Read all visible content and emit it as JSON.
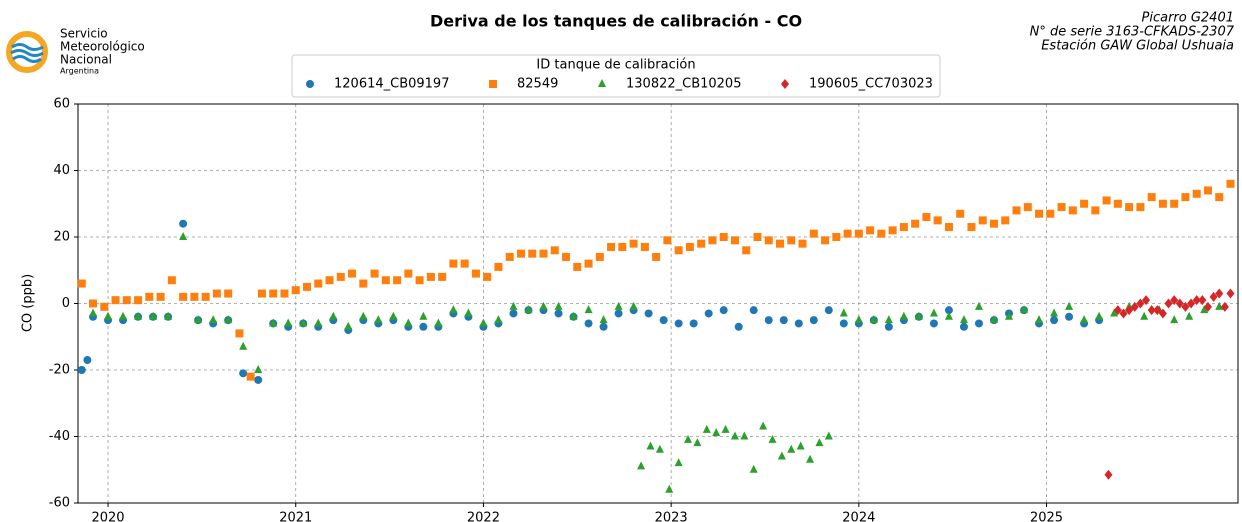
{
  "logo": {
    "lines": [
      "Servicio",
      "Meteorológico",
      "Nacional",
      "Argentina"
    ]
  },
  "chart_data": {
    "type": "scatter",
    "title": "Deriva de los tanques de calibración - CO",
    "annotations": [
      "Picarro G2401",
      "N° de serie 3163-CFKADS-2307",
      "Estación GAW Global Ushuaia"
    ],
    "legend_title": "ID tanque de calibración",
    "ylabel": "CO (ppb)",
    "xlim": [
      2019.84,
      2026.02
    ],
    "ylim": [
      -60,
      60
    ],
    "xticks": [
      2020,
      2021,
      2022,
      2023,
      2024,
      2025
    ],
    "yticks": [
      -60,
      -40,
      -20,
      0,
      20,
      40,
      60
    ],
    "grid": true,
    "series": [
      {
        "name": "120614_CB09197",
        "color": "#1f77b4",
        "marker": "circle",
        "x": [
          2019.86,
          2019.89,
          2019.92,
          2020.0,
          2020.08,
          2020.16,
          2020.24,
          2020.32,
          2020.4,
          2020.48,
          2020.56,
          2020.64,
          2020.72,
          2020.8,
          2020.88,
          2020.96,
          2021.04,
          2021.12,
          2021.2,
          2021.28,
          2021.36,
          2021.44,
          2021.52,
          2021.6,
          2021.68,
          2021.76,
          2021.84,
          2021.92,
          2022.0,
          2022.08,
          2022.16,
          2022.24,
          2022.32,
          2022.4,
          2022.48,
          2022.56,
          2022.64,
          2022.72,
          2022.8,
          2022.88,
          2022.96,
          2023.04,
          2023.12,
          2023.2,
          2023.28,
          2023.36,
          2023.44,
          2023.52,
          2023.6,
          2023.68,
          2023.76,
          2023.84,
          2023.92,
          2024.0,
          2024.08,
          2024.16,
          2024.24,
          2024.32,
          2024.4,
          2024.48,
          2024.56,
          2024.64,
          2024.72,
          2024.8,
          2024.88,
          2024.96,
          2025.04,
          2025.12,
          2025.2,
          2025.28
        ],
        "values": [
          -20,
          -17,
          -4,
          -5,
          -5,
          -4,
          -4,
          -4,
          24,
          -5,
          -6,
          -5,
          -21,
          -23,
          -6,
          -7,
          -6,
          -7,
          -5,
          -8,
          -5,
          -6,
          -5,
          -7,
          -7,
          -7,
          -3,
          -4,
          -7,
          -6,
          -3,
          -2,
          -2,
          -3,
          -4,
          -6,
          -7,
          -3,
          -2,
          -3,
          -5,
          -6,
          -6,
          -3,
          -2,
          -7,
          -2,
          -5,
          -5,
          -6,
          -5,
          -2,
          -6,
          -6,
          -5,
          -7,
          -5,
          -4,
          -6,
          -2,
          -7,
          -6,
          -5,
          -3,
          -2,
          -6,
          -5,
          -4,
          -6,
          -5
        ]
      },
      {
        "name": "82549",
        "color": "#ff7f0e",
        "marker": "square",
        "x": [
          2019.86,
          2019.92,
          2019.98,
          2020.04,
          2020.1,
          2020.16,
          2020.22,
          2020.28,
          2020.34,
          2020.4,
          2020.46,
          2020.52,
          2020.58,
          2020.64,
          2020.7,
          2020.76,
          2020.82,
          2020.88,
          2020.94,
          2021.0,
          2021.06,
          2021.12,
          2021.18,
          2021.24,
          2021.3,
          2021.36,
          2021.42,
          2021.48,
          2021.54,
          2021.6,
          2021.66,
          2021.72,
          2021.78,
          2021.84,
          2021.9,
          2021.96,
          2022.02,
          2022.08,
          2022.14,
          2022.2,
          2022.26,
          2022.32,
          2022.38,
          2022.44,
          2022.5,
          2022.56,
          2022.62,
          2022.68,
          2022.74,
          2022.8,
          2022.86,
          2022.92,
          2022.98,
          2023.04,
          2023.1,
          2023.16,
          2023.22,
          2023.28,
          2023.34,
          2023.4,
          2023.46,
          2023.52,
          2023.58,
          2023.64,
          2023.7,
          2023.76,
          2023.82,
          2023.88,
          2023.94,
          2024.0,
          2024.06,
          2024.12,
          2024.18,
          2024.24,
          2024.3,
          2024.36,
          2024.42,
          2024.48,
          2024.54,
          2024.6,
          2024.66,
          2024.72,
          2024.78,
          2024.84,
          2024.9,
          2024.96,
          2025.02,
          2025.08,
          2025.14,
          2025.2,
          2025.26,
          2025.32,
          2025.38,
          2025.44,
          2025.5,
          2025.56,
          2025.62,
          2025.68,
          2025.74,
          2025.8,
          2025.86,
          2025.92,
          2025.98
        ],
        "values": [
          6,
          0,
          -1,
          1,
          1,
          1,
          2,
          2,
          7,
          2,
          2,
          2,
          3,
          3,
          -9,
          -22,
          3,
          3,
          3,
          4,
          5,
          6,
          7,
          8,
          9,
          6,
          9,
          7,
          7,
          9,
          7,
          8,
          8,
          12,
          12,
          9,
          8,
          11,
          14,
          15,
          15,
          15,
          16,
          14,
          11,
          12,
          14,
          17,
          17,
          18,
          17,
          14,
          19,
          16,
          17,
          18,
          19,
          20,
          19,
          16,
          20,
          19,
          18,
          19,
          18,
          21,
          19,
          20,
          21,
          21,
          22,
          21,
          22,
          23,
          24,
          26,
          25,
          23,
          27,
          23,
          25,
          24,
          25,
          28,
          29,
          27,
          27,
          29,
          28,
          30,
          28,
          31,
          30,
          29,
          29,
          32,
          30,
          30,
          32,
          33,
          34,
          32,
          36
        ]
      },
      {
        "name": "130822_CB10205",
        "color": "#2ca02c",
        "marker": "triangle",
        "x": [
          2019.92,
          2020.0,
          2020.08,
          2020.16,
          2020.24,
          2020.32,
          2020.4,
          2020.48,
          2020.56,
          2020.64,
          2020.72,
          2020.8,
          2020.88,
          2020.96,
          2021.04,
          2021.12,
          2021.2,
          2021.28,
          2021.36,
          2021.44,
          2021.52,
          2021.6,
          2021.68,
          2021.76,
          2021.84,
          2021.92,
          2022.0,
          2022.08,
          2022.16,
          2022.24,
          2022.32,
          2022.4,
          2022.48,
          2022.56,
          2022.64,
          2022.72,
          2022.8,
          2022.84,
          2022.89,
          2022.94,
          2022.99,
          2023.04,
          2023.09,
          2023.14,
          2023.19,
          2023.24,
          2023.29,
          2023.34,
          2023.39,
          2023.44,
          2023.49,
          2023.54,
          2023.59,
          2023.64,
          2023.69,
          2023.74,
          2023.79,
          2023.84,
          2023.92,
          2024.0,
          2024.08,
          2024.16,
          2024.24,
          2024.32,
          2024.4,
          2024.48,
          2024.56,
          2024.64,
          2024.72,
          2024.8,
          2024.88,
          2024.96,
          2025.04,
          2025.12,
          2025.2,
          2025.28,
          2025.36,
          2025.44,
          2025.52,
          2025.6,
          2025.68,
          2025.76,
          2025.84,
          2025.92
        ],
        "values": [
          -3,
          -4,
          -4,
          -4,
          -4,
          -4,
          20,
          -5,
          -5,
          -5,
          -13,
          -20,
          -6,
          -6,
          -6,
          -6,
          -4,
          -7,
          -4,
          -5,
          -4,
          -6,
          -4,
          -6,
          -2,
          -3,
          -6,
          -5,
          -1,
          -2,
          -1,
          -1,
          -4,
          -2,
          -5,
          -1,
          -1,
          -49,
          -43,
          -44,
          -56,
          -48,
          -41,
          -42,
          -38,
          -39,
          -38,
          -40,
          -40,
          -50,
          -37,
          -41,
          -46,
          -44,
          -43,
          -47,
          -42,
          -40,
          -3,
          -5,
          -5,
          -5,
          -4,
          -4,
          -3,
          -4,
          -5,
          -1,
          -5,
          -4,
          -2,
          -5,
          -3,
          -1,
          -5,
          -4,
          -3,
          -1,
          -4,
          -2,
          -5,
          -4,
          -2,
          -1
        ]
      },
      {
        "name": "190605_CC703023",
        "color": "#d62728",
        "marker": "diamond",
        "x": [
          2025.33,
          2025.38,
          2025.41,
          2025.44,
          2025.47,
          2025.5,
          2025.53,
          2025.56,
          2025.59,
          2025.62,
          2025.65,
          2025.68,
          2025.71,
          2025.74,
          2025.77,
          2025.8,
          2025.83,
          2025.86,
          2025.89,
          2025.92,
          2025.95,
          2025.98
        ],
        "values": [
          -51.5,
          -2,
          -3,
          -2,
          -1,
          0,
          1,
          -2,
          -2,
          -3,
          0,
          1,
          0,
          -1,
          0,
          1,
          1,
          -1,
          2,
          3,
          -1,
          3
        ]
      }
    ]
  }
}
